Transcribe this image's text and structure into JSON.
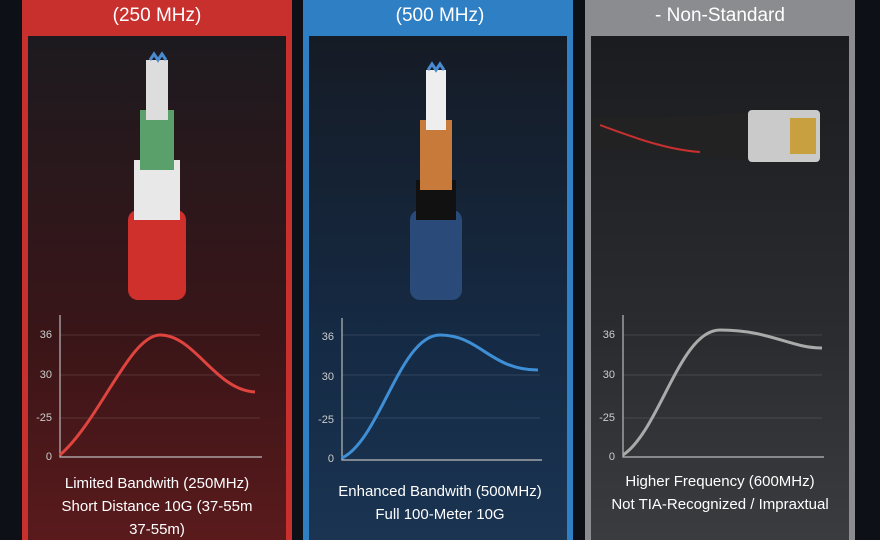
{
  "panels": [
    {
      "header": [
        "(250 MHz)"
      ],
      "ticks": [
        "36",
        "30",
        "-25",
        "0"
      ],
      "caption": [
        "Limited Bandwith (250MHz)",
        "Short Distance 10G (37-55m",
        "37-55m)"
      ]
    },
    {
      "header": [
        "(500 MHz)"
      ],
      "ticks": [
        "36",
        "30",
        "-25",
        "0"
      ],
      "caption": [
        "Enhanced Bandwith (500MHz)",
        "Full 100-Meter 10G"
      ]
    },
    {
      "header": [
        "- Non-Standard"
      ],
      "ticks": [
        "36",
        "30",
        "-25",
        "0"
      ],
      "caption": [
        "Higher Frequency (600MHz)",
        "Not TIA-Recognized / Impraxtual"
      ]
    }
  ]
}
